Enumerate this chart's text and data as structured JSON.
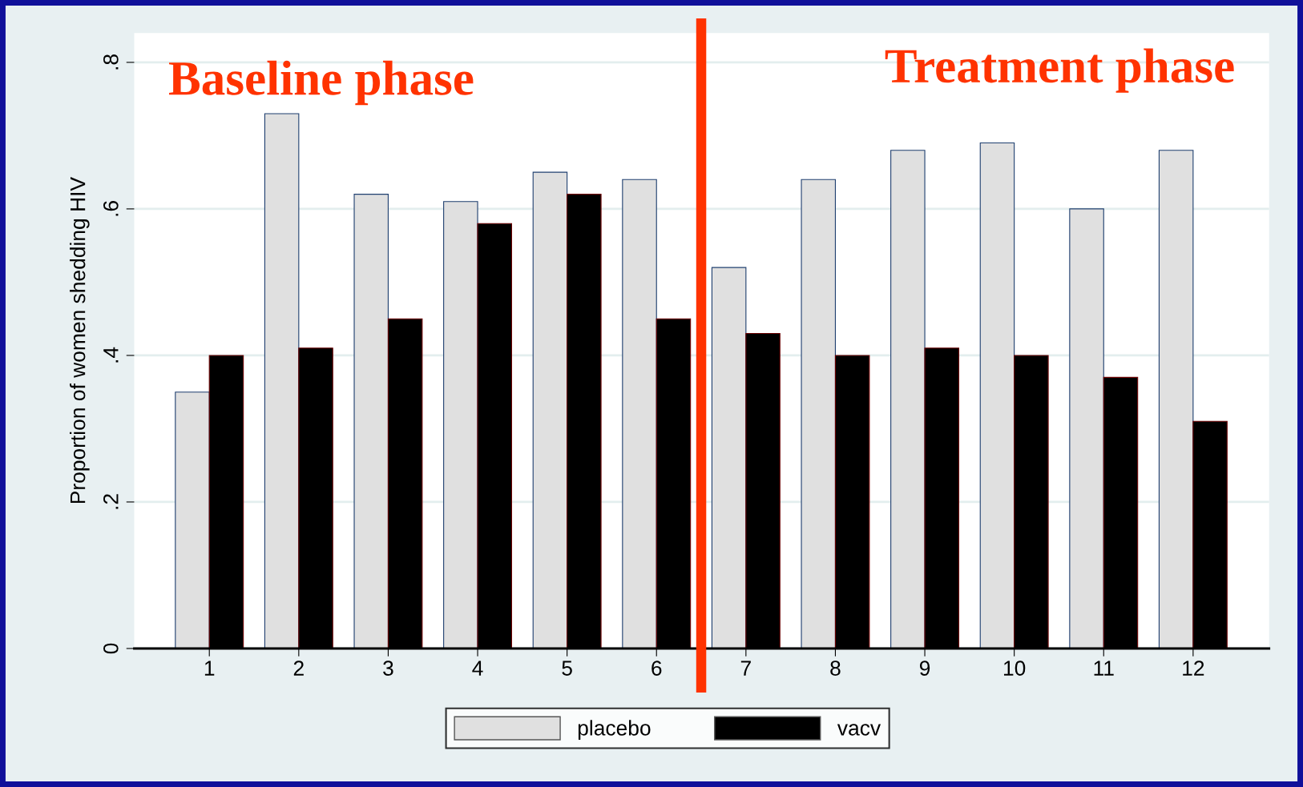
{
  "chart_data": {
    "type": "bar",
    "ylabel": "Proportion of women shedding HIV",
    "x": [
      1,
      2,
      3,
      4,
      5,
      6,
      7,
      8,
      9,
      10,
      11,
      12
    ],
    "series": [
      {
        "name": "placebo",
        "color": "#e0e0e0",
        "values": [
          0.35,
          0.73,
          0.62,
          0.61,
          0.65,
          0.64,
          0.52,
          0.64,
          0.68,
          0.69,
          0.6,
          0.68
        ]
      },
      {
        "name": "vacv",
        "color": "#000000",
        "values": [
          0.4,
          0.41,
          0.45,
          0.58,
          0.62,
          0.45,
          0.43,
          0.4,
          0.41,
          0.4,
          0.37,
          0.31
        ]
      }
    ],
    "xlim": [
      0.16,
      12.85
    ],
    "xticks": [
      1,
      2,
      3,
      4,
      5,
      6,
      7,
      8,
      9,
      10,
      11,
      12
    ],
    "ylim": [
      0,
      0.84
    ],
    "yticks": [
      {
        "value": 0,
        "label": "0"
      },
      {
        "value": 0.2,
        "label": ".2"
      },
      {
        "value": 0.4,
        "label": ".4"
      },
      {
        "value": 0.6,
        "label": ".6"
      },
      {
        "value": 0.8,
        "label": ".8"
      }
    ],
    "grid": "y",
    "legend": "bottom",
    "ref_lines": [
      {
        "axis": "x",
        "value": 6.5,
        "color": "#ff3300"
      }
    ],
    "annotations": [
      "Baseline phase",
      "Treatment phase"
    ]
  }
}
